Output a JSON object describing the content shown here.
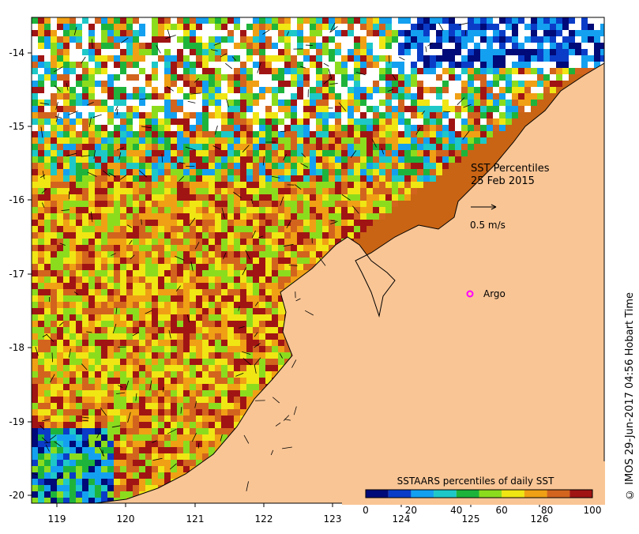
{
  "map": {
    "title_line1": "SST Percentiles",
    "title_line2": "25 Feb 2015",
    "vector_scale_label": "0.5 m/s",
    "argo_label": "Argo",
    "argo_marker_color": "#ff00ff",
    "land_color": "#f9c595",
    "coast_color": "#000000",
    "lon_ticks": [
      "119",
      "120",
      "121",
      "122",
      "123",
      "124",
      "125",
      "126"
    ],
    "lat_ticks": [
      "-14",
      "-15",
      "-16",
      "-17",
      "-18",
      "-19",
      "-20"
    ]
  },
  "colorbar": {
    "title": "SSTAARS percentiles of daily SST",
    "tick_labels": [
      "0",
      "20",
      "40",
      "60",
      "80",
      "100"
    ],
    "colors": [
      "#000a78",
      "#0a3cc8",
      "#14a0f0",
      "#1ec8c8",
      "#1eb43c",
      "#8cdc1e",
      "#f0e614",
      "#f0a014",
      "#d2641e",
      "#a01414"
    ]
  },
  "credit": "© IMOS 29-Jun-2017 04:56 Hobart Time"
}
